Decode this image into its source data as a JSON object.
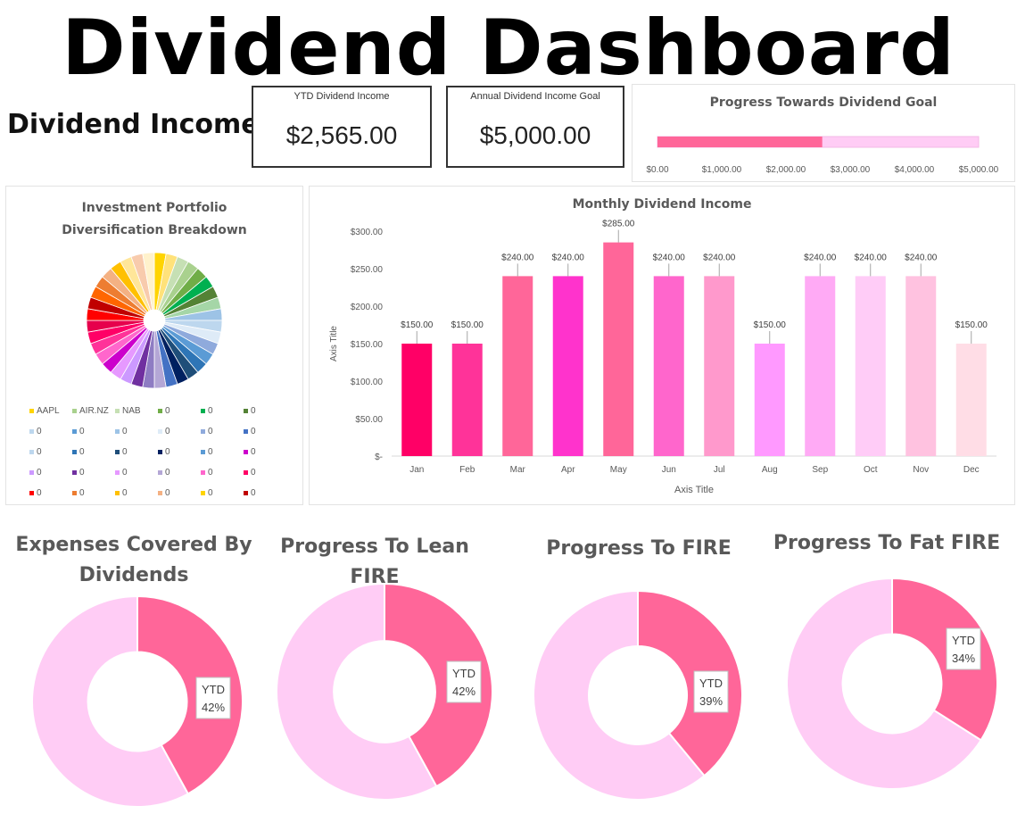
{
  "header": {
    "title": "Dividend Dashboard"
  },
  "section_title": "Dividend Income",
  "kpis": {
    "ytd_label": "YTD Dividend Income",
    "ytd_value": "$2,565.00",
    "goal_label": "Annual Dividend Income Goal",
    "goal_value": "$5,000.00"
  },
  "colors": {
    "accent_pink": "#ff6699",
    "light_pink": "#ffccf5",
    "track_pink": "#ffd6f2"
  },
  "chart_data": [
    {
      "id": "progress",
      "type": "bar",
      "orientation": "horizontal",
      "title": "Progress Towards Dividend Goal",
      "value": 2565,
      "max": 5000,
      "xlim": [
        0,
        5000
      ],
      "tick_labels": [
        "$0.00",
        "$1,000.00",
        "$2,000.00",
        "$3,000.00",
        "$4,000.00",
        "$5,000.00"
      ],
      "colors": [
        "#ff6699",
        "#ffccf5"
      ]
    },
    {
      "id": "diversification",
      "type": "pie",
      "title_lines": [
        "Investment Portfolio",
        "Diversification Breakdown"
      ],
      "slice_count": 36,
      "colors": [
        "#ffd400",
        "#ffe27a",
        "#c6e0b4",
        "#a9d18e",
        "#70ad47",
        "#00b050",
        "#548235",
        "#a5d6a7",
        "#9dc3e6",
        "#bdd7ee",
        "#deebf7",
        "#8faadc",
        "#5b9bd5",
        "#2e75b6",
        "#1f4e79",
        "#002060",
        "#4472c4",
        "#b4a7d6",
        "#8e7cc3",
        "#7030a0",
        "#cc99ff",
        "#e699ff",
        "#cc00cc",
        "#ff66cc",
        "#ff3399",
        "#ff0066",
        "#e6004c",
        "#ff0000",
        "#c00000",
        "#ff6600",
        "#ed7d31",
        "#f4b183",
        "#ffc000",
        "#ffe699",
        "#f8cbad",
        "#fff2cc"
      ],
      "legend": [
        {
          "label": "AAPL",
          "color": "#ffd400"
        },
        {
          "label": "AIR.NZ",
          "color": "#a9d18e"
        },
        {
          "label": "NAB",
          "color": "#c6e0b4"
        },
        {
          "label": "0",
          "color": "#70ad47"
        },
        {
          "label": "0",
          "color": "#00b050"
        },
        {
          "label": "0",
          "color": "#548235"
        },
        {
          "label": "0",
          "color": "#bdd7ee"
        },
        {
          "label": "0",
          "color": "#5b9bd5"
        },
        {
          "label": "0",
          "color": "#9dc3e6"
        },
        {
          "label": "0",
          "color": "#deebf7"
        },
        {
          "label": "0",
          "color": "#8faadc"
        },
        {
          "label": "0",
          "color": "#4472c4"
        },
        {
          "label": "0",
          "color": "#bdd7ee"
        },
        {
          "label": "0",
          "color": "#2e75b6"
        },
        {
          "label": "0",
          "color": "#1f4e79"
        },
        {
          "label": "0",
          "color": "#002060"
        },
        {
          "label": "0",
          "color": "#5b9bd5"
        },
        {
          "label": "0",
          "color": "#cc00cc"
        },
        {
          "label": "0",
          "color": "#cc99ff"
        },
        {
          "label": "0",
          "color": "#7030a0"
        },
        {
          "label": "0",
          "color": "#e699ff"
        },
        {
          "label": "0",
          "color": "#b4a7d6"
        },
        {
          "label": "0",
          "color": "#ff66cc"
        },
        {
          "label": "0",
          "color": "#ff0066"
        },
        {
          "label": "0",
          "color": "#ff0000"
        },
        {
          "label": "0",
          "color": "#ed7d31"
        },
        {
          "label": "0",
          "color": "#ffc000"
        },
        {
          "label": "0",
          "color": "#f4b183"
        },
        {
          "label": "0",
          "color": "#ffd400"
        },
        {
          "label": "0",
          "color": "#c00000"
        }
      ]
    },
    {
      "id": "monthly",
      "type": "bar",
      "title": "Monthly Dividend Income",
      "xlabel": "Axis Title",
      "ylabel": "Axis Title",
      "categories": [
        "Jan",
        "Feb",
        "Mar",
        "Apr",
        "May",
        "Jun",
        "Jul",
        "Aug",
        "Sep",
        "Oct",
        "Nov",
        "Dec"
      ],
      "values": [
        150,
        150,
        240,
        240,
        285,
        240,
        240,
        150,
        240,
        240,
        240,
        150
      ],
      "value_labels": [
        "$150.00",
        "$150.00",
        "$240.00",
        "$240.00",
        "$285.00",
        "$240.00",
        "$240.00",
        "$150.00",
        "$240.00",
        "$240.00",
        "$240.00",
        "$150.00"
      ],
      "ylim": [
        0,
        300
      ],
      "ytick_values": [
        0,
        50,
        100,
        150,
        200,
        250,
        300
      ],
      "ytick_labels": [
        "$-",
        "$50.00",
        "$100.00",
        "$150.00",
        "$200.00",
        "$250.00",
        "$300.00"
      ],
      "colors": [
        "#ff0066",
        "#ff3399",
        "#ff6699",
        "#ff33cc",
        "#ff6699",
        "#ff66cc",
        "#ff99cc",
        "#ff99ff",
        "#ffaaf5",
        "#ffccf7",
        "#ffc2e0",
        "#ffdde6"
      ]
    },
    {
      "id": "expenses",
      "type": "pie",
      "donut": true,
      "title_lines": [
        "Expenses Covered By",
        "Dividends"
      ],
      "value_percent": 42,
      "label_lines": [
        "YTD",
        "42%"
      ],
      "colors": [
        "#ff6699",
        "#ffccf5"
      ]
    },
    {
      "id": "lean_fire",
      "type": "pie",
      "donut": true,
      "title_lines": [
        "Progress To Lean FIRE"
      ],
      "value_percent": 42,
      "label_lines": [
        "YTD",
        "42%"
      ],
      "colors": [
        "#ff6699",
        "#ffccf5"
      ]
    },
    {
      "id": "fire",
      "type": "pie",
      "donut": true,
      "title_lines": [
        "Progress To FIRE"
      ],
      "value_percent": 39,
      "label_lines": [
        "YTD",
        "39%"
      ],
      "colors": [
        "#ff6699",
        "#ffccf5"
      ]
    },
    {
      "id": "fat_fire",
      "type": "pie",
      "donut": true,
      "title_lines": [
        "Progress To Fat FIRE"
      ],
      "value_percent": 34,
      "label_lines": [
        "YTD",
        "34%"
      ],
      "colors": [
        "#ff6699",
        "#ffccf5"
      ]
    }
  ]
}
